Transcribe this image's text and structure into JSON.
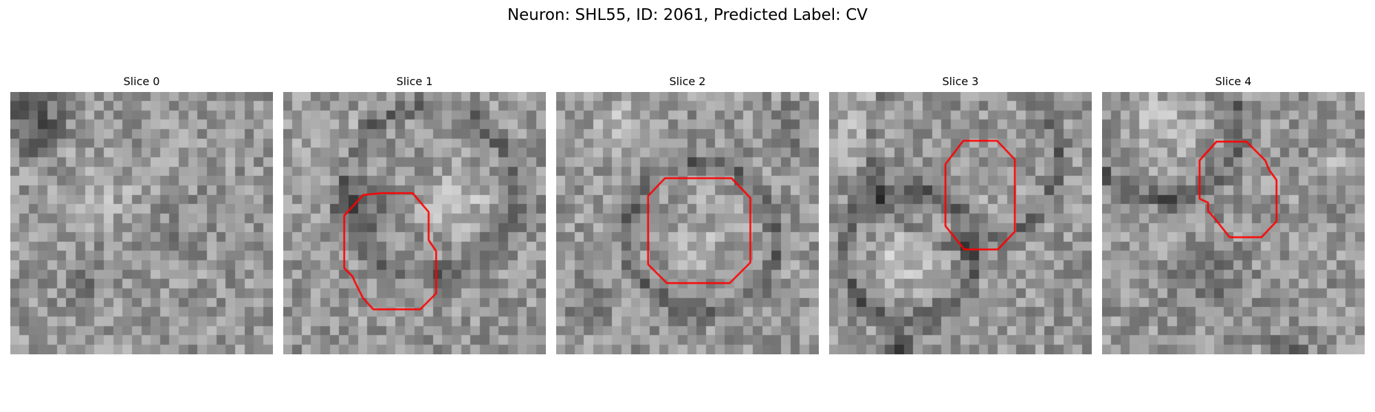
{
  "figure": {
    "title": "Neuron: SHL55, ID: 2061, Predicted Label: CV"
  },
  "colors": {
    "outline": "#ff0000",
    "background": "#ffffff",
    "colormap": "gray"
  },
  "panels": [
    {
      "label": "Slice 0",
      "has_outline": false
    },
    {
      "label": "Slice 1",
      "has_outline": true
    },
    {
      "label": "Slice 2",
      "has_outline": true
    },
    {
      "label": "Slice 3",
      "has_outline": true
    },
    {
      "label": "Slice 4",
      "has_outline": true
    }
  ]
}
